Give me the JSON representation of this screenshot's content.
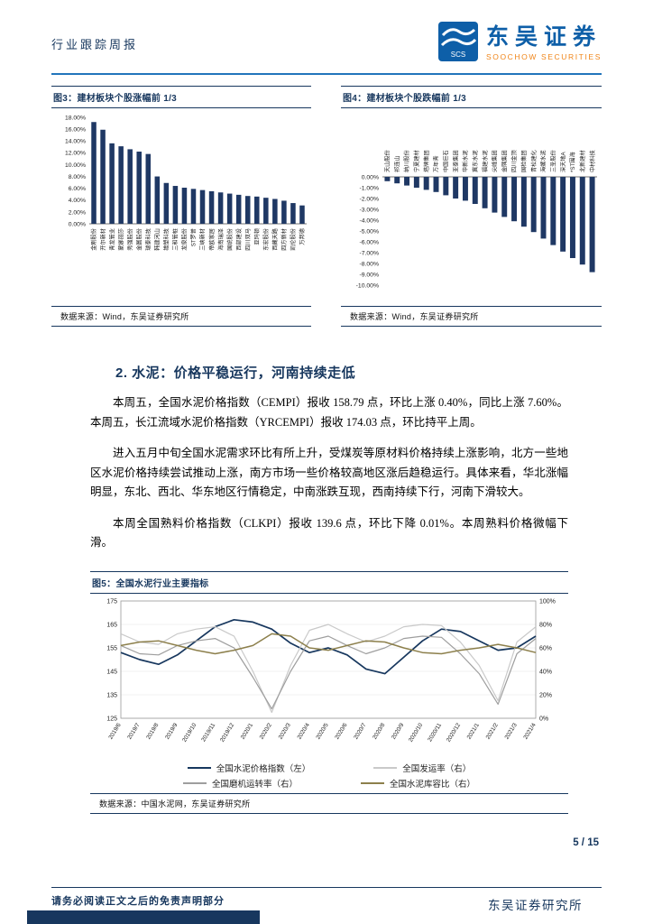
{
  "header": {
    "report_type": "行业跟踪周报",
    "brand_cn": "东吴证券",
    "brand_en": "SOOCHOW SECURITIES",
    "logo_text": "SCS"
  },
  "figure3": {
    "title": "图3：建材板块个股涨幅前 1/3",
    "source": "数据来源：Wind，东吴证券研究所",
    "chart_data": {
      "type": "bar",
      "unit": "%",
      "ylim": [
        0,
        18
      ],
      "ystep": 2,
      "bar_color": "#1F3864",
      "categories": [
        "金刚股份",
        "开尔新材",
        "青龙管业",
        "蒙娜丽莎",
        "秀强股份",
        "金圆股份",
        "瑞泰科技",
        "韩建河山",
        "雄塑科技",
        "三和管桩",
        "龙泉股份",
        "ST罗普",
        "三峡新材",
        "帝欧家居",
        "海南瑞泽",
        "国统股份",
        "西部建设",
        "四川双马",
        "亚玛顿",
        "东宏股份",
        "西藏天路",
        "四方新材",
        "凯伦股份",
        "万邦德"
      ],
      "values": [
        17.2,
        15.9,
        13.6,
        13.1,
        12.6,
        12.2,
        11.8,
        8.0,
        6.9,
        6.4,
        6.1,
        5.9,
        5.7,
        5.5,
        5.3,
        5.1,
        4.9,
        4.7,
        4.6,
        4.4,
        4.2,
        3.9,
        3.5,
        3.1
      ]
    }
  },
  "figure4": {
    "title": "图4：建材板块个股跌幅前 1/3",
    "source": "数据来源：Wind，东吴证券研究所",
    "chart_data": {
      "type": "bar",
      "unit": "%",
      "ylim": [
        -10,
        0
      ],
      "ystep": 1,
      "bar_color": "#1F3864",
      "categories": [
        "天山股份",
        "祁连山",
        "纳川股份",
        "宁夏建材",
        "塔牌集团",
        "万年青",
        "中国巨石",
        "亚泰集团",
        "华新水泥",
        "冀东水泥",
        "福建水泥",
        "尖峰集团",
        "金隅集团",
        "四川金顶",
        "国检集团",
        "青松建化",
        "海螺水泥",
        "三圣股份",
        "深天地A",
        "*ST围海",
        "北新建材",
        "中材科技"
      ],
      "values": [
        -0.4,
        -0.6,
        -0.8,
        -1.0,
        -1.2,
        -1.4,
        -1.7,
        -2.0,
        -2.2,
        -2.5,
        -2.9,
        -3.3,
        -3.7,
        -4.1,
        -4.6,
        -5.1,
        -5.7,
        -6.3,
        -6.9,
        -7.5,
        -8.1,
        -8.8
      ]
    }
  },
  "section2": {
    "heading": "2. 水泥：价格平稳运行，河南持续走低",
    "paragraphs": [
      "本周五，全国水泥价格指数（CEMPI）报收 158.79 点，环比上涨 0.40%，同比上涨 7.60%。本周五，长江流域水泥价格指数（YRCEMPI）报收 174.03 点，环比持平上周。",
      "进入五月中旬全国水泥需求环比有所上升，受煤炭等原材料价格持续上涨影响，北方一些地区水泥价格持续尝试推动上涨，南方市场一些价格较高地区涨后趋稳运行。具体来看，华北涨幅明显，东北、西北、华东地区行情稳定，中南涨跌互现，西南持续下行，河南下滑较大。",
      "本周全国熟料价格指数（CLKPI）报收 139.6 点，环比下降 0.01%。本周熟料价格微幅下滑。"
    ]
  },
  "figure5": {
    "title": "图5：全国水泥行业主要指标",
    "source": "数据来源：中国水泥网，东吴证券研究所",
    "chart_data": {
      "type": "line",
      "x": [
        "2019/6",
        "2019/7",
        "2019/8",
        "2019/9",
        "2019/10",
        "2019/11",
        "2019/12",
        "2020/1",
        "2020/2",
        "2020/3",
        "2020/4",
        "2020/5",
        "2020/6",
        "2020/7",
        "2020/8",
        "2020/9",
        "2020/10",
        "2020/11",
        "2020/12",
        "2021/1",
        "2021/2",
        "2021/3",
        "2021/4"
      ],
      "left_axis": {
        "min": 125,
        "max": 175,
        "step": 10
      },
      "right_axis": {
        "min": 0,
        "max": 100,
        "step": 20,
        "unit": "%"
      },
      "series": [
        {
          "name": "全国水泥价格指数（左）",
          "axis": "left",
          "color": "#17375E",
          "width": 1.7,
          "values": [
            153,
            150,
            148,
            152,
            158,
            164,
            167,
            166,
            163,
            157,
            153,
            155,
            152,
            146,
            144,
            151,
            158,
            163,
            162,
            158,
            154,
            155,
            160
          ]
        },
        {
          "name": "全国发运率（右）",
          "axis": "right",
          "color": "#C9C9C9",
          "width": 1.2,
          "values": [
            72,
            65,
            63,
            72,
            76,
            78,
            70,
            40,
            5,
            45,
            75,
            80,
            72,
            65,
            70,
            78,
            80,
            79,
            65,
            45,
            15,
            65,
            78
          ]
        },
        {
          "name": "全国磨机运转率（右）",
          "axis": "right",
          "color": "#9E9E9E",
          "width": 1.2,
          "values": [
            62,
            55,
            54,
            62,
            66,
            68,
            60,
            35,
            8,
            40,
            66,
            70,
            62,
            55,
            60,
            68,
            70,
            69,
            55,
            38,
            12,
            55,
            68
          ]
        },
        {
          "name": "全国水泥库容比（右）",
          "axis": "right",
          "color": "#8C7F4B",
          "width": 1.5,
          "values": [
            62,
            65,
            66,
            62,
            58,
            55,
            58,
            62,
            72,
            70,
            60,
            58,
            62,
            66,
            65,
            60,
            56,
            55,
            58,
            60,
            63,
            60,
            56
          ]
        }
      ]
    }
  },
  "footer": {
    "page": "5 / 15",
    "institute": "东吴证券研究所",
    "disclaimer": "请务必阅读正文之后的免责声明部分"
  }
}
